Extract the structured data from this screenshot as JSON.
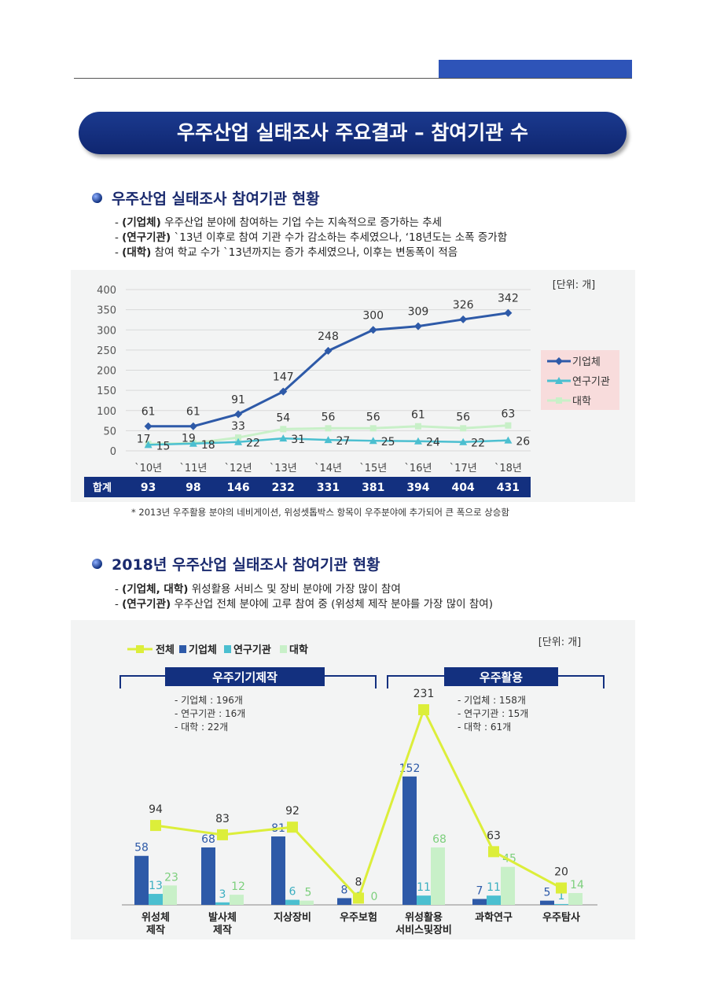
{
  "header": {
    "banner_title": "우주산업 실태조사 주요결과 – 참여기관 수"
  },
  "section1": {
    "title": "우주산업 실태조사 참여기관 현황",
    "bullets": [
      {
        "prefix": "- ",
        "bold": "(기업체)",
        "text": " 우주산업 분야에 참여하는 기업 수는 지속적으로 증가하는 추세"
      },
      {
        "prefix": "- ",
        "bold": "(연구기관)",
        "text": " `13년 이후로 참여 기관 수가 감소하는 추세였으나, ‘18년도는 소폭 증가함"
      },
      {
        "prefix": "- ",
        "bold": "(대학)",
        "text": " 참여 학교 수가 `13년까지는 증가 추세였으나, 이후는 변동폭이 적음"
      }
    ],
    "footnote": "* 2013년 우주활용 분야의 네비게이션, 위성셋톱박스 항목이 우주분야에 추가되어 큰 폭으로 상승함"
  },
  "section2": {
    "title": "2018년 우주산업 실태조사 참여기관 현황",
    "bullets": [
      {
        "prefix": "- ",
        "bold": "(기업체, 대학)",
        "text": " 위성활용 서비스 및 장비 분야에 가장 많이 참여"
      },
      {
        "prefix": "- ",
        "bold": "(연구기관)",
        "text": " 우주산업 전체 분야에 고루 참여 중 (위성체 제작 분야를 가장 많이 참여)"
      }
    ]
  },
  "colors": {
    "company": "#2e5aa8",
    "research": "#4bbfd0",
    "university": "#c8f0c8",
    "total": "#dcee3a",
    "banner": "#13307f"
  },
  "chart_data": [
    {
      "type": "line",
      "unit_label": "[단위: 개]",
      "x": [
        "`10년",
        "`11년",
        "`12년",
        "`13년",
        "`14년",
        "`15년",
        "`16년",
        "`17년",
        "`18년"
      ],
      "ylim": [
        0,
        400
      ],
      "yticks": [
        0,
        50,
        100,
        150,
        200,
        250,
        300,
        350,
        400
      ],
      "grid": true,
      "legend_position": "right",
      "series": [
        {
          "name": "기업체",
          "values": [
            61,
            61,
            91,
            147,
            248,
            300,
            309,
            326,
            342
          ]
        },
        {
          "name": "연구기관",
          "values": [
            15,
            18,
            22,
            31,
            27,
            25,
            24,
            22,
            26
          ]
        },
        {
          "name": "대학",
          "values": [
            17,
            19,
            33,
            54,
            56,
            56,
            61,
            56,
            63
          ]
        }
      ],
      "totals": {
        "label": "합계",
        "values": [
          93,
          98,
          146,
          232,
          331,
          381,
          394,
          404,
          431
        ]
      }
    },
    {
      "type": "bar",
      "unit_label": "[단위: 개]",
      "legend_position": "top-left",
      "categories": [
        "위성체\n제작",
        "발사체\n제작",
        "지상장비",
        "우주보험",
        "위성활용\n서비스및장비",
        "과학연구",
        "우주탐사"
      ],
      "series": [
        {
          "name": "기업체",
          "values": [
            58,
            68,
            81,
            8,
            152,
            7,
            5
          ]
        },
        {
          "name": "연구기관",
          "values": [
            13,
            3,
            6,
            0,
            11,
            11,
            1
          ]
        },
        {
          "name": "대학",
          "values": [
            23,
            12,
            5,
            0,
            68,
            45,
            14
          ]
        },
        {
          "name": "전체",
          "type": "line",
          "values": [
            94,
            83,
            92,
            8,
            231,
            63,
            20
          ]
        }
      ],
      "groups": [
        {
          "label": "우주기기제작",
          "notes": [
            "- 기업체 : 196개",
            "- 연구기관 : 16개",
            "- 대학 : 22개"
          ]
        },
        {
          "label": "우주활용",
          "notes": [
            "- 기업체 : 158개",
            "- 연구기관 : 15개",
            "- 대학 : 61개"
          ]
        }
      ]
    }
  ]
}
